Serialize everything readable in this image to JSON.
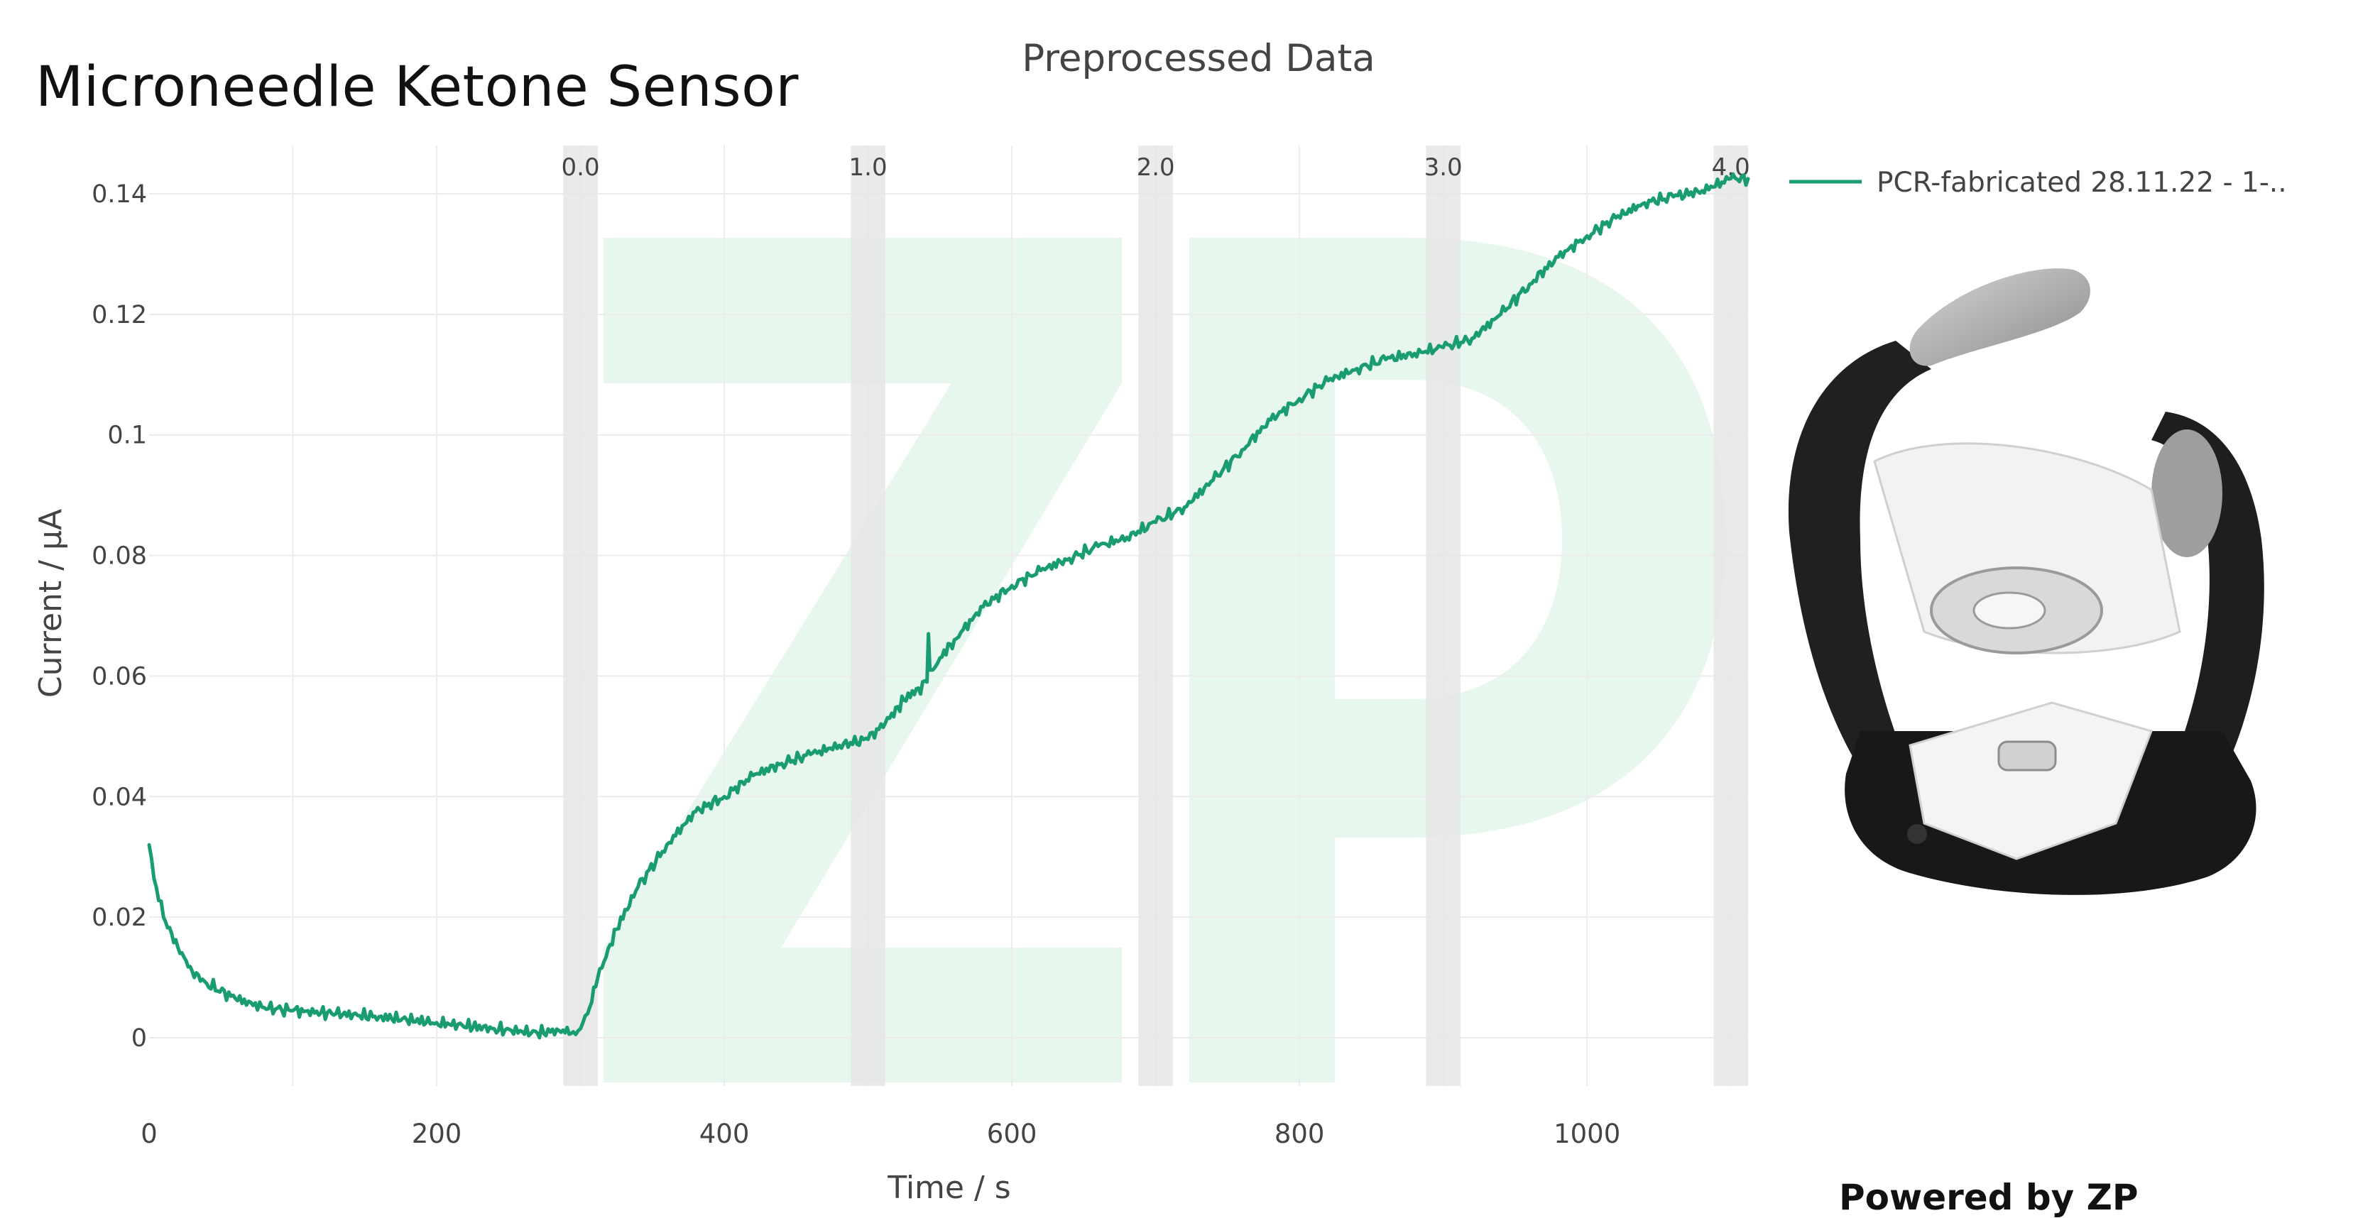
{
  "app": {
    "title": "Microneedle Ketone Sensor",
    "powered_by": "Powered by ZP"
  },
  "colors": {
    "series": "#1a9c73",
    "band": "#e6e6e6",
    "grid": "#ececec",
    "watermark": "#e7f7ee"
  },
  "chart_data": {
    "type": "line",
    "title": "Preprocessed Data",
    "xlabel": "Time / s",
    "ylabel": "Current / μA",
    "xlim": [
      0,
      1112
    ],
    "ylim": [
      -0.008,
      0.148
    ],
    "xticks": [
      0,
      200,
      400,
      600,
      800,
      1000
    ],
    "yticks": [
      0,
      0.02,
      0.04,
      0.06,
      0.08,
      0.1,
      0.12,
      0.14
    ],
    "ytick_labels": [
      "0",
      "0.02",
      "0.04",
      "0.06",
      "0.08",
      "0.1",
      "0.12",
      "0.14"
    ],
    "grid": true,
    "legend_position": "top-right",
    "bands": [
      {
        "label": "0.0",
        "x0": 288,
        "x1": 312
      },
      {
        "label": "1.0",
        "x0": 488,
        "x1": 512
      },
      {
        "label": "2.0",
        "x0": 688,
        "x1": 712
      },
      {
        "label": "3.0",
        "x0": 888,
        "x1": 912
      },
      {
        "label": "4.0",
        "x0": 1088,
        "x1": 1112
      }
    ],
    "series": [
      {
        "name": "PCR-fabricated 28.11.22 - 1-..",
        "x": [
          0,
          5,
          10,
          20,
          30,
          40,
          60,
          80,
          100,
          130,
          160,
          200,
          240,
          270,
          285,
          295,
          300,
          305,
          312,
          325,
          340,
          360,
          380,
          400,
          420,
          440,
          460,
          480,
          500,
          515,
          525,
          535,
          541,
          542,
          543,
          545,
          550,
          560,
          580,
          600,
          620,
          640,
          660,
          680,
          700,
          720,
          740,
          760,
          780,
          800,
          820,
          840,
          860,
          880,
          900,
          920,
          940,
          960,
          980,
          1000,
          1020,
          1040,
          1060,
          1080,
          1100,
          1112
        ],
        "y": [
          0.032,
          0.025,
          0.02,
          0.015,
          0.011,
          0.009,
          0.0065,
          0.005,
          0.0045,
          0.004,
          0.0035,
          0.0025,
          0.0015,
          0.0008,
          0.0012,
          0.001,
          0.0015,
          0.004,
          0.01,
          0.018,
          0.025,
          0.032,
          0.0375,
          0.04,
          0.0435,
          0.0455,
          0.047,
          0.0485,
          0.0495,
          0.053,
          0.056,
          0.058,
          0.059,
          0.067,
          0.061,
          0.061,
          0.063,
          0.066,
          0.0715,
          0.075,
          0.0775,
          0.0795,
          0.0815,
          0.083,
          0.0855,
          0.088,
          0.0925,
          0.0975,
          0.1025,
          0.106,
          0.109,
          0.111,
          0.1125,
          0.1135,
          0.1145,
          0.116,
          0.12,
          0.125,
          0.1295,
          0.133,
          0.136,
          0.1385,
          0.1395,
          0.1405,
          0.1425,
          0.1425
        ]
      }
    ]
  }
}
